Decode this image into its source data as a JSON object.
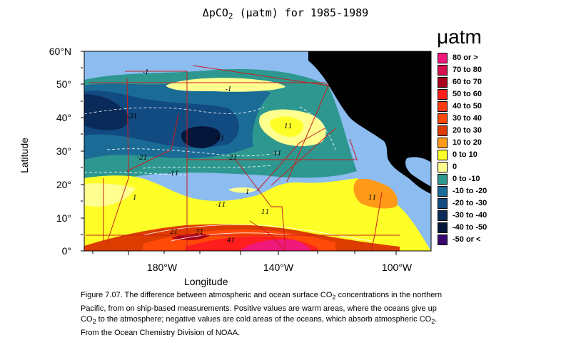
{
  "title": {
    "prefix": "ΔpCO",
    "subscript": "2",
    "suffix": " (μatm) for 1985-1989"
  },
  "legend": {
    "heading": "μatm",
    "entries": [
      {
        "label": "80 or >",
        "color": "#f0187a"
      },
      {
        "label": "70 to 80",
        "color": "#d4104e"
      },
      {
        "label": "60 to 70",
        "color": "#a8001c"
      },
      {
        "label": "50 to 60",
        "color": "#ff1e1e"
      },
      {
        "label": "40 to 50",
        "color": "#ff3a12"
      },
      {
        "label": "30 to 40",
        "color": "#ff4a08"
      },
      {
        "label": "20 to 30",
        "color": "#dc3c00"
      },
      {
        "label": "10 to 20",
        "color": "#ff9a18"
      },
      {
        "label": "0 to 10",
        "color": "#ffff28"
      },
      {
        "label": "0",
        "color": "#ffff90"
      },
      {
        "label": "0 to -10",
        "color": "#2e9890"
      },
      {
        "label": "-10 to -20",
        "color": "#1a6c96"
      },
      {
        "label": "-20 to -30",
        "color": "#124a82"
      },
      {
        "label": "-30 to -40",
        "color": "#0a2a5a"
      },
      {
        "label": "-40 to -50",
        "color": "#04163a"
      },
      {
        "label": "-50 or <",
        "color": "#3a0870"
      }
    ]
  },
  "axes": {
    "y_title": "Latitude",
    "x_title": "Longitude",
    "y_ticks": [
      "60°N",
      "50°",
      "40°",
      "30°",
      "20°",
      "10°",
      "0°"
    ],
    "x_ticks": [
      "180°W",
      "140°W",
      "100°W"
    ]
  },
  "colors": {
    "land": "#000000",
    "no_data": "#8cbcf0",
    "ship_tracks": "#c81e1e"
  },
  "caption": {
    "part1": "Figure 7.07.  The difference between atmospheric and ocean surface CO",
    "sub1": "2",
    "part2": " concentrations in the northern Pacific, from on ship-based measurements.  Positive values are warm areas, where the oceans give up CO",
    "sub2": "2",
    "part3": " to the atmosphere; negative values are cold areas of the oceans, which absorb atmospheric CO",
    "sub3": "2",
    "part4": ".  From the Ocean Chemistry Division of NOAA."
  }
}
